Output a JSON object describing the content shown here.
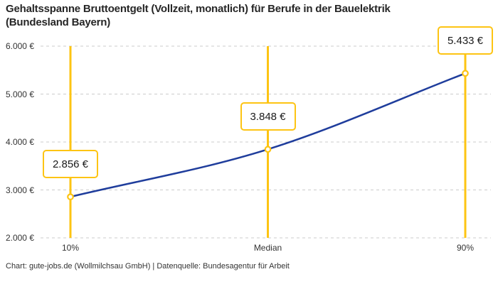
{
  "chart": {
    "title_lines": [
      "Gehaltsspanne Bruttoentgelt (Vollzeit, monatlich) für Berufe in der Bauelektrik",
      "(Bundesland Bayern)"
    ],
    "footer": "Chart: gute-jobs.de (Wollmilchsau GmbH) | Datenquelle: Bundesagentur für Arbeit"
  },
  "chart_data": {
    "type": "line",
    "categories": [
      "10%",
      "Median",
      "90%"
    ],
    "values": [
      2856,
      3848,
      5433
    ],
    "value_labels": [
      "2.856 €",
      "3.848 €",
      "5.433 €"
    ],
    "y_ticks": [
      2000,
      3000,
      4000,
      5000,
      6000
    ],
    "y_tick_labels": [
      "2.000 €",
      "3.000 €",
      "4.000 €",
      "5.000 €",
      "6.000 €"
    ],
    "ylim": [
      2000,
      6000
    ],
    "grid": "dashed-horizontal",
    "legend": "none",
    "colors": {
      "line": "#1f3d9c",
      "accent": "#fdc413",
      "marker_fill": "#ffffff",
      "grid": "#cccccc",
      "axis_text": "#333333",
      "title_text": "#262626"
    }
  }
}
